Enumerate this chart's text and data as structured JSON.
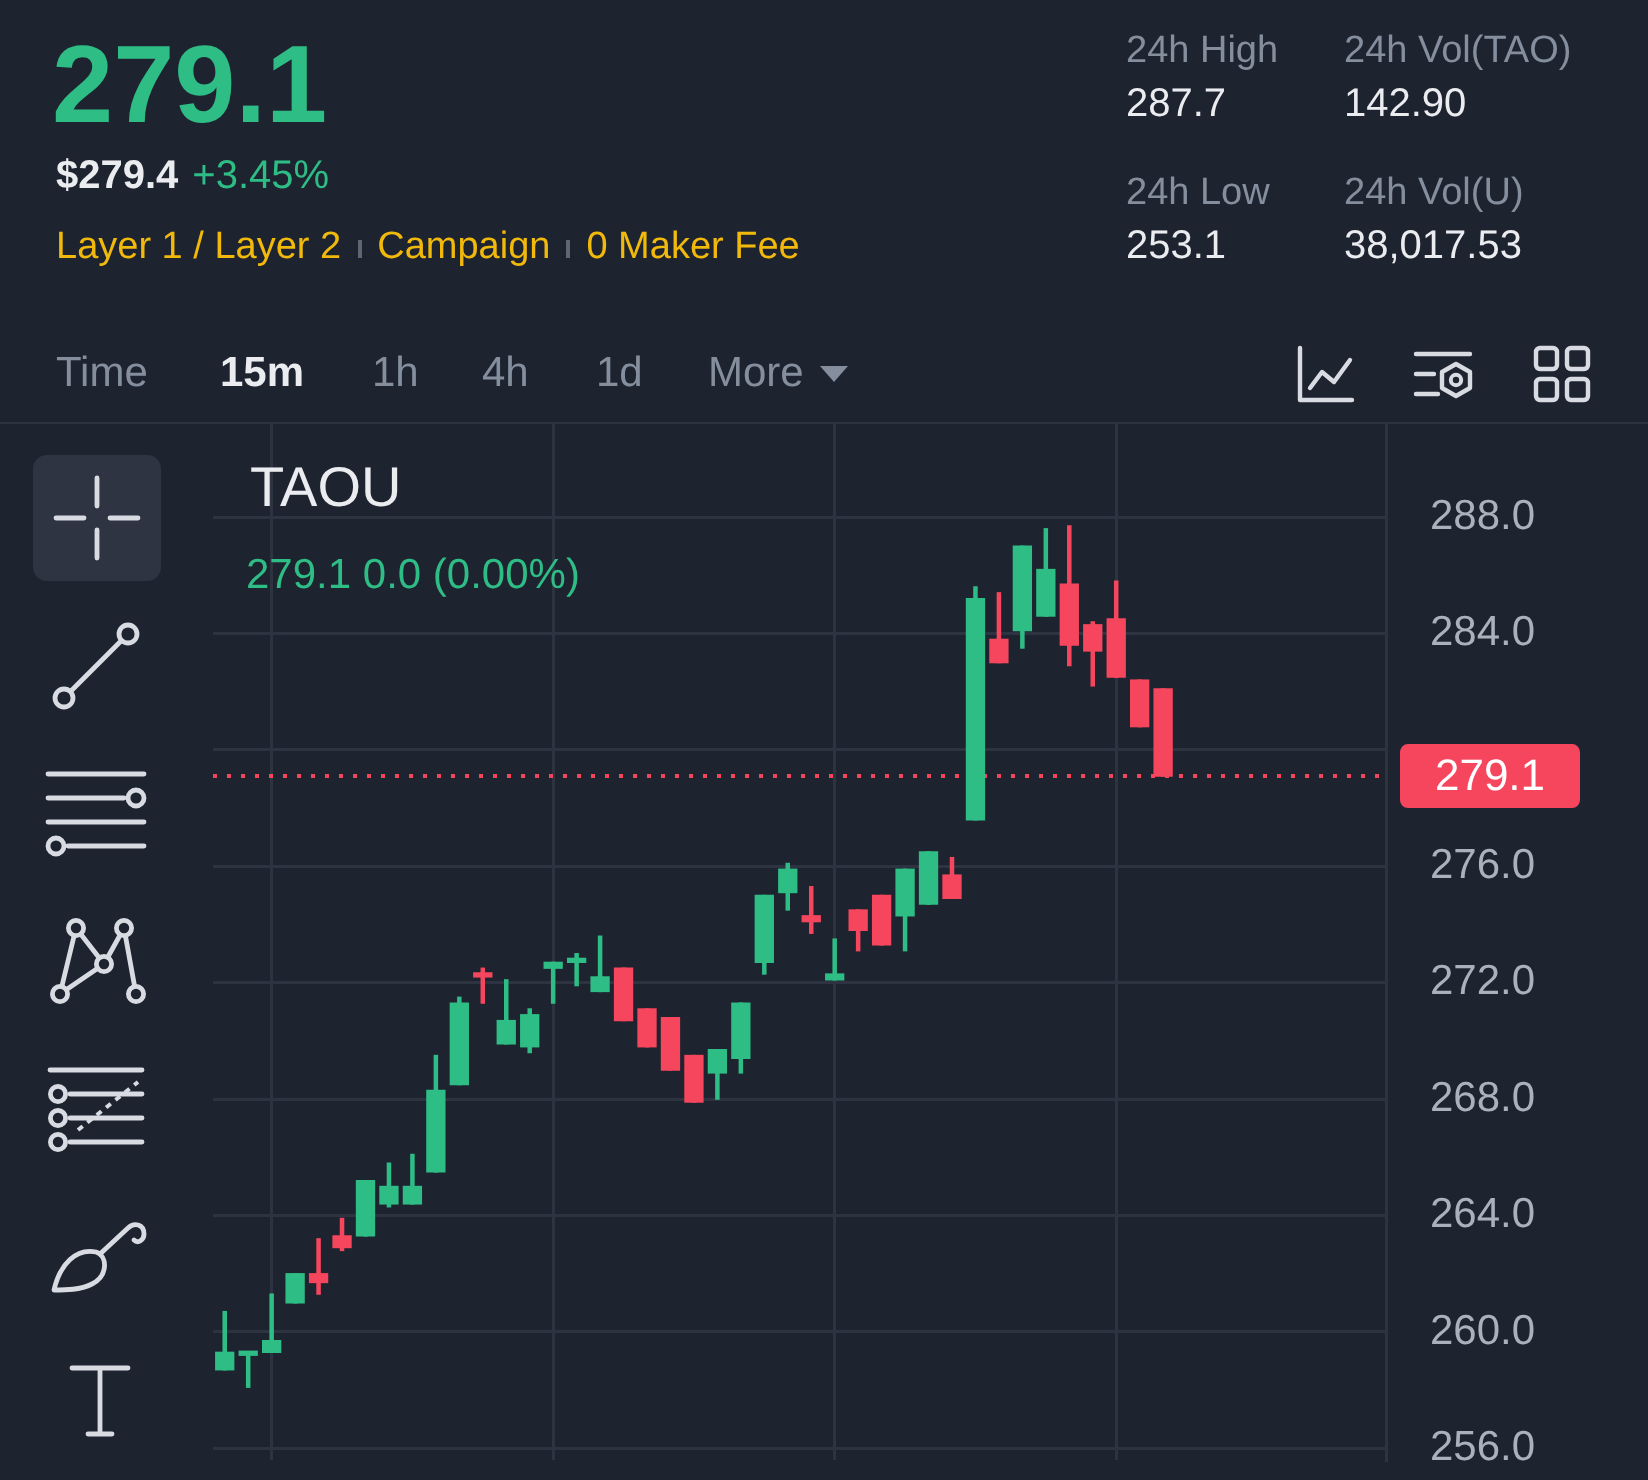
{
  "chart_data": [
    {
      "type": "other",
      "title": "279.1",
      "annotations": [
        "$279.4",
        "+3.45%",
        "Layer 1 / Layer 2",
        "Campaign",
        "0 Maker Fee",
        "24h High",
        "287.7",
        "24h Vol(TAO)",
        "142.90",
        "24h Low",
        "253.1",
        "24h Vol(U)",
        "38,017.53",
        "Time",
        "15m",
        "1h",
        "4h",
        "1d",
        "More"
      ]
    },
    {
      "type": "candlestick",
      "title": "TAOU",
      "subtitle": "279.1 0.0 (0.00%)",
      "categories": [
        null,
        null,
        null,
        null,
        null,
        null,
        null,
        null,
        null,
        null,
        null,
        null,
        null,
        null,
        null,
        null,
        null,
        null,
        null,
        null,
        null,
        null,
        null,
        null,
        null,
        null,
        null,
        null,
        null,
        null,
        null,
        null,
        null,
        null,
        null,
        null,
        null,
        null,
        null,
        null,
        null,
        null,
        null,
        null,
        null,
        null,
        null,
        null,
        null,
        null
      ],
      "ohlc": [
        [
          258.7,
          260.7,
          258.7,
          259.3
        ],
        [
          259.2,
          259.3,
          258.1,
          259.3
        ],
        [
          259.3,
          261.3,
          259.3,
          259.7
        ],
        [
          261.0,
          262.0,
          261.0,
          262.0
        ],
        [
          262.0,
          263.2,
          261.3,
          261.7
        ],
        [
          263.3,
          263.9,
          262.8,
          262.9
        ],
        [
          263.3,
          265.2,
          263.3,
          265.2
        ],
        [
          264.4,
          265.8,
          264.3,
          265.0
        ],
        [
          264.4,
          266.1,
          264.4,
          265.0
        ],
        [
          265.5,
          269.5,
          265.5,
          268.3
        ],
        [
          268.5,
          271.5,
          268.5,
          271.3
        ],
        [
          272.3,
          272.5,
          271.3,
          272.2
        ],
        [
          269.9,
          272.1,
          269.9,
          270.7
        ],
        [
          269.8,
          271.1,
          269.6,
          270.9
        ],
        [
          272.5,
          272.7,
          271.3,
          272.7
        ],
        [
          272.7,
          273.0,
          271.9,
          272.8
        ],
        [
          271.7,
          273.6,
          271.7,
          272.2
        ],
        [
          272.5,
          272.5,
          270.7,
          270.7
        ],
        [
          271.1,
          271.1,
          269.8,
          269.8
        ],
        [
          270.8,
          270.8,
          269.0,
          269.0
        ],
        [
          269.5,
          269.5,
          267.9,
          267.9
        ],
        [
          268.9,
          269.7,
          268.0,
          269.7
        ],
        [
          269.4,
          271.3,
          268.9,
          271.3
        ],
        [
          272.7,
          275.0,
          272.3,
          275.0
        ],
        [
          275.1,
          276.1,
          274.5,
          275.9
        ],
        [
          274.3,
          275.3,
          273.7,
          274.1
        ],
        [
          272.1,
          273.5,
          272.1,
          272.3
        ],
        [
          274.5,
          274.5,
          273.1,
          273.8
        ],
        [
          275.0,
          275.0,
          273.3,
          273.3
        ],
        [
          274.3,
          275.9,
          273.1,
          275.9
        ],
        [
          274.7,
          276.5,
          274.7,
          276.5
        ],
        [
          275.7,
          276.3,
          274.9,
          274.9
        ],
        [
          277.6,
          285.6,
          277.6,
          285.2
        ],
        [
          283.8,
          285.4,
          283.0,
          283.0
        ],
        [
          284.1,
          287.0,
          283.5,
          287.0
        ],
        [
          284.6,
          287.6,
          284.6,
          286.2
        ],
        [
          285.7,
          287.7,
          282.9,
          283.6
        ],
        [
          284.3,
          284.4,
          282.2,
          283.4
        ],
        [
          284.5,
          285.8,
          282.5,
          282.5
        ],
        [
          282.4,
          282.4,
          280.8,
          280.8
        ],
        [
          282.1,
          282.1,
          279.1,
          279.1
        ],
        null,
        null,
        null,
        null,
        null,
        null,
        null,
        null,
        null
      ],
      "colors": [
        "#2ebd85",
        "#2ebd85",
        "#2ebd85",
        "#2ebd85",
        "#f6465d",
        "#f6465d",
        "#2ebd85",
        "#2ebd85",
        "#2ebd85",
        "#2ebd85",
        "#2ebd85",
        "#f6465d",
        "#2ebd85",
        "#2ebd85",
        "#2ebd85",
        "#2ebd85",
        "#2ebd85",
        "#f6465d",
        "#f6465d",
        "#f6465d",
        "#f6465d",
        "#2ebd85",
        "#2ebd85",
        "#2ebd85",
        "#2ebd85",
        "#f6465d",
        "#2ebd85",
        "#f6465d",
        "#f6465d",
        "#2ebd85",
        "#2ebd85",
        "#f6465d",
        "#2ebd85",
        "#f6465d",
        "#2ebd85",
        "#2ebd85",
        "#f6465d",
        "#f6465d",
        "#f6465d",
        "#f6465d",
        "#f6465d",
        null,
        null,
        null,
        null,
        null,
        null,
        null,
        null,
        null
      ],
      "ylim": [
        255.6,
        291.2
      ],
      "yticks": [
        {
          "value": 256,
          "label": "256.0"
        },
        {
          "value": 260,
          "label": "260.0"
        },
        {
          "value": 264,
          "label": "264.0"
        },
        {
          "value": 268,
          "label": "268.0"
        },
        {
          "value": 272,
          "label": "272.0"
        },
        {
          "value": 276,
          "label": "276.0"
        },
        {
          "value": 280,
          "label": null
        },
        {
          "value": 284,
          "label": "284.0"
        },
        {
          "value": 288,
          "label": "288.0"
        }
      ],
      "grid": true,
      "tick_labels": "y",
      "ref_lines": [
        {
          "axis": "y",
          "value": 279.1,
          "label": "279.1",
          "color": "#f6465d",
          "line_style": "dotted"
        }
      ]
    }
  ]
}
